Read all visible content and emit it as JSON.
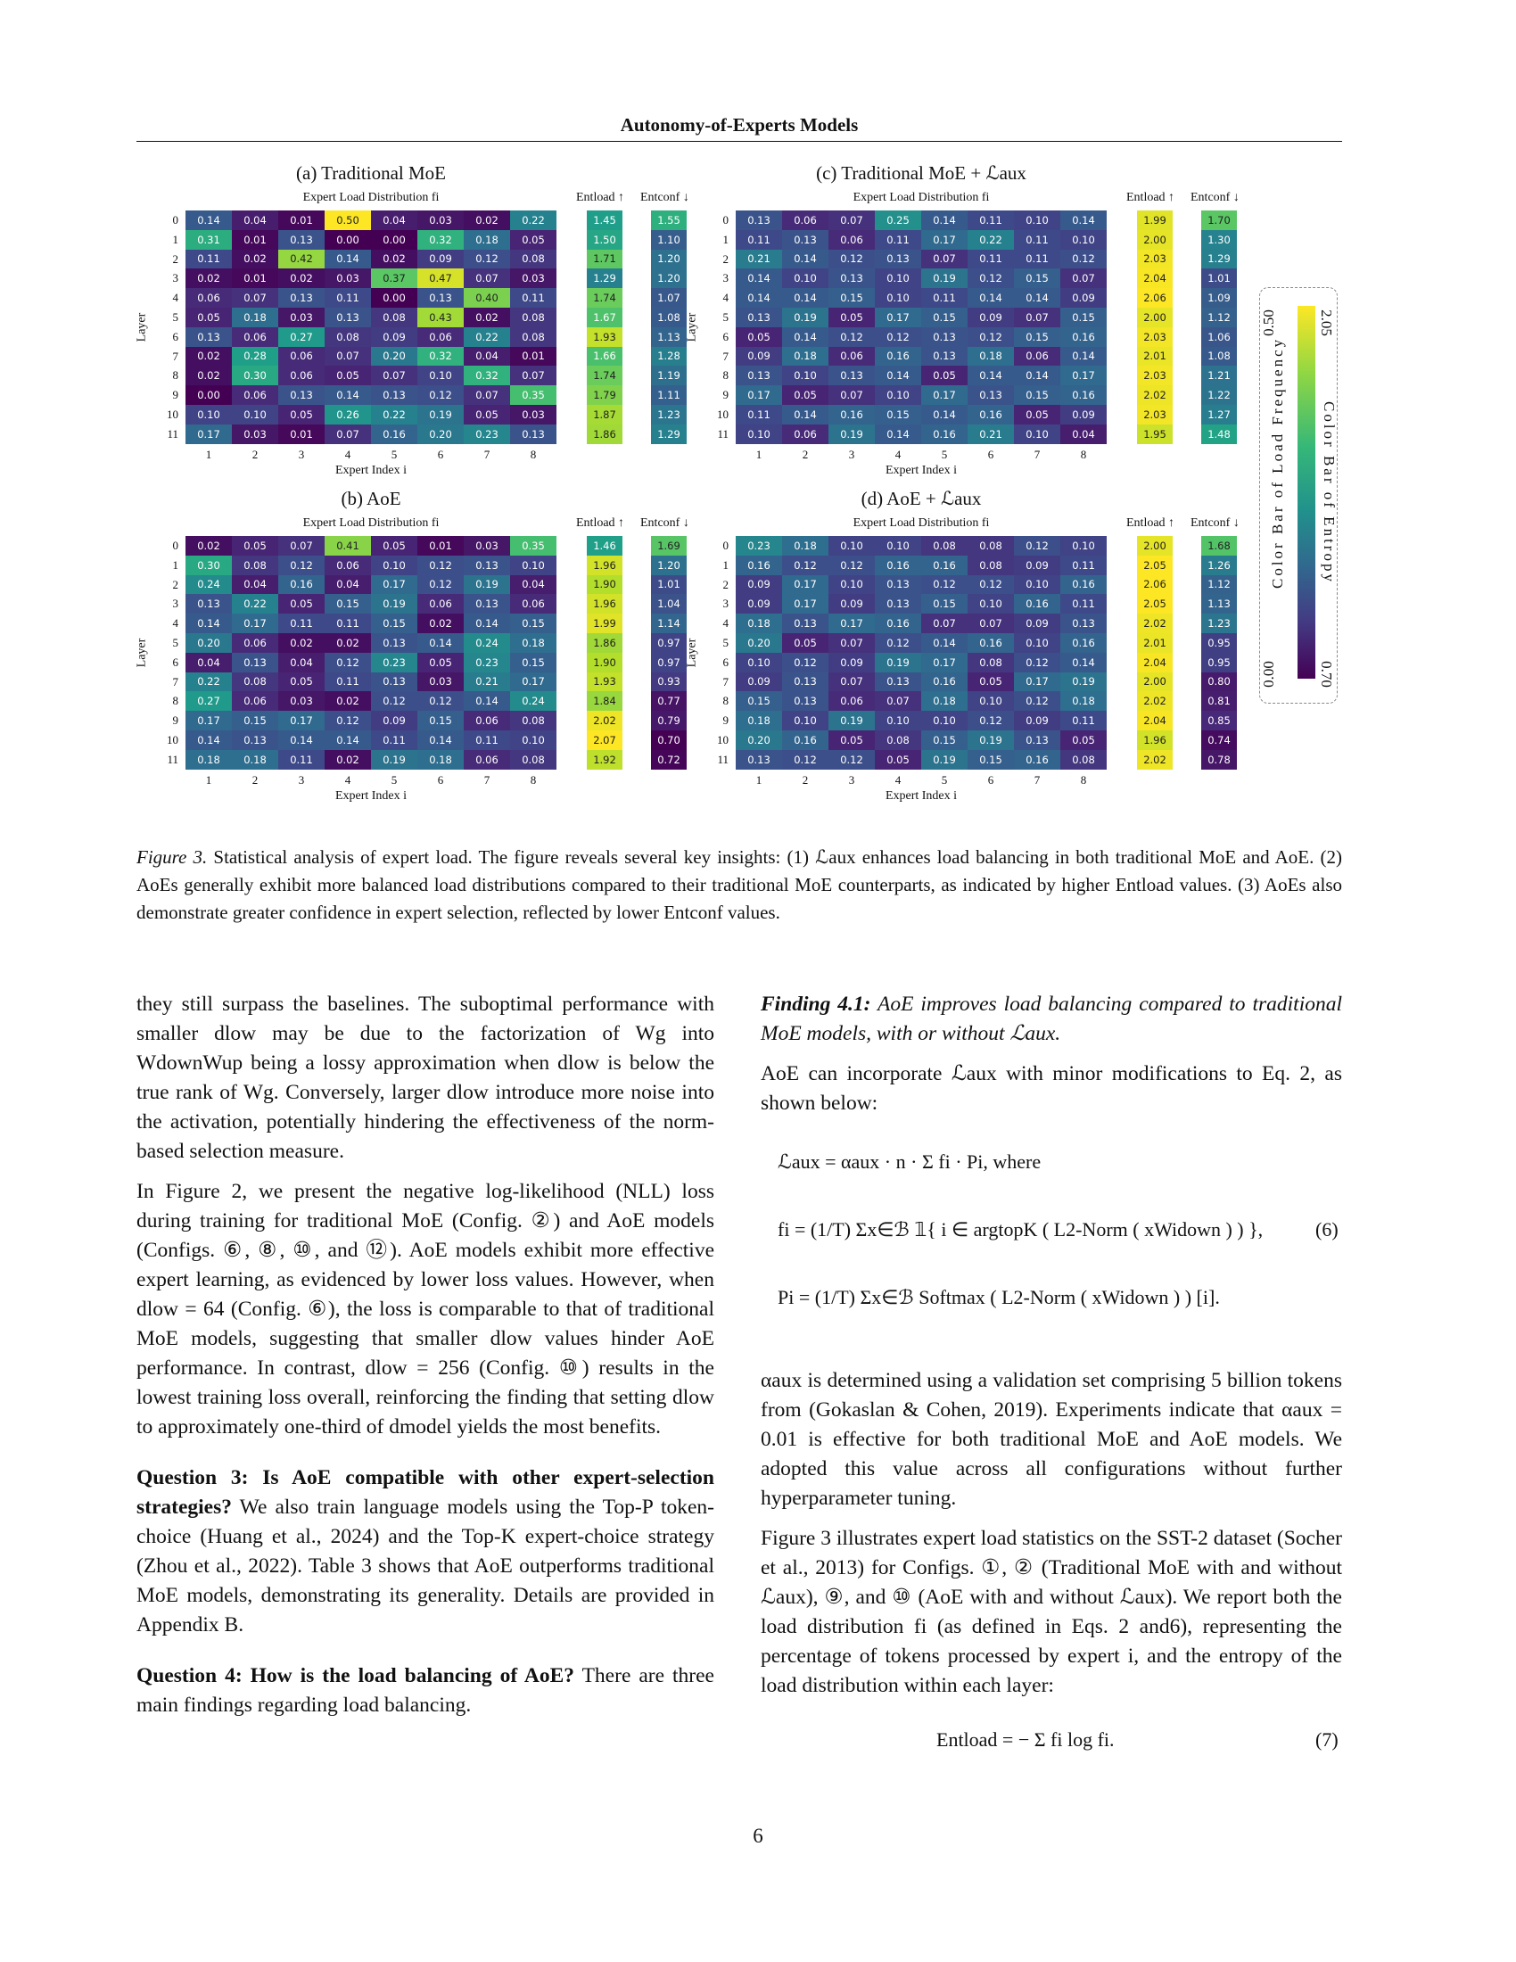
{
  "header": {
    "running_title": "Autonomy-of-Experts Models"
  },
  "chart_data": [
    {
      "type": "heatmap",
      "title": "(a) Traditional MoE",
      "subtitle": "Expert Load Distribution fi",
      "xlabel": "Expert Index i",
      "ylabel": "Layer",
      "x": [
        "1",
        "2",
        "3",
        "4",
        "5",
        "6",
        "7",
        "8"
      ],
      "y": [
        "0",
        "1",
        "2",
        "3",
        "4",
        "5",
        "6",
        "7",
        "8",
        "9",
        "10",
        "11"
      ],
      "values": [
        [
          0.14,
          0.04,
          0.01,
          0.5,
          0.04,
          0.03,
          0.02,
          0.22
        ],
        [
          0.31,
          0.01,
          0.13,
          0.0,
          0.0,
          0.32,
          0.18,
          0.05
        ],
        [
          0.11,
          0.02,
          0.42,
          0.14,
          0.02,
          0.09,
          0.12,
          0.08
        ],
        [
          0.02,
          0.01,
          0.02,
          0.03,
          0.37,
          0.47,
          0.07,
          0.03
        ],
        [
          0.06,
          0.07,
          0.13,
          0.11,
          0.0,
          0.13,
          0.4,
          0.11
        ],
        [
          0.05,
          0.18,
          0.03,
          0.13,
          0.08,
          0.43,
          0.02,
          0.08
        ],
        [
          0.13,
          0.06,
          0.27,
          0.08,
          0.09,
          0.06,
          0.22,
          0.08
        ],
        [
          0.02,
          0.28,
          0.06,
          0.07,
          0.2,
          0.32,
          0.04,
          0.01
        ],
        [
          0.02,
          0.3,
          0.06,
          0.05,
          0.07,
          0.1,
          0.32,
          0.07
        ],
        [
          0.0,
          0.06,
          0.13,
          0.14,
          0.13,
          0.12,
          0.07,
          0.35
        ],
        [
          0.1,
          0.1,
          0.05,
          0.26,
          0.22,
          0.19,
          0.05,
          0.03
        ],
        [
          0.17,
          0.03,
          0.01,
          0.07,
          0.16,
          0.2,
          0.23,
          0.13
        ]
      ],
      "ent_load_label": "Entload ↑",
      "ent_conf_label": "Entconf ↓",
      "ent_load": [
        1.45,
        1.5,
        1.71,
        1.29,
        1.74,
        1.67,
        1.93,
        1.66,
        1.74,
        1.79,
        1.87,
        1.86
      ],
      "ent_conf": [
        1.55,
        1.1,
        1.2,
        1.2,
        1.07,
        1.08,
        1.13,
        1.28,
        1.19,
        1.11,
        1.23,
        1.29
      ]
    },
    {
      "type": "heatmap",
      "title": "(c) Traditional MoE + ℒaux",
      "subtitle": "Expert Load Distribution fi",
      "xlabel": "Expert Index i",
      "ylabel": "Layer",
      "x": [
        "1",
        "2",
        "3",
        "4",
        "5",
        "6",
        "7",
        "8"
      ],
      "y": [
        "0",
        "1",
        "2",
        "3",
        "4",
        "5",
        "6",
        "7",
        "8",
        "9",
        "10",
        "11"
      ],
      "values": [
        [
          0.13,
          0.06,
          0.07,
          0.25,
          0.14,
          0.11,
          0.1,
          0.14
        ],
        [
          0.11,
          0.13,
          0.06,
          0.11,
          0.17,
          0.22,
          0.11,
          0.1
        ],
        [
          0.21,
          0.14,
          0.12,
          0.13,
          0.07,
          0.11,
          0.11,
          0.12
        ],
        [
          0.14,
          0.1,
          0.13,
          0.1,
          0.19,
          0.12,
          0.15,
          0.07
        ],
        [
          0.14,
          0.14,
          0.15,
          0.1,
          0.11,
          0.14,
          0.14,
          0.09
        ],
        [
          0.13,
          0.19,
          0.05,
          0.17,
          0.15,
          0.09,
          0.07,
          0.15
        ],
        [
          0.05,
          0.14,
          0.12,
          0.12,
          0.13,
          0.12,
          0.15,
          0.16
        ],
        [
          0.09,
          0.18,
          0.06,
          0.16,
          0.13,
          0.18,
          0.06,
          0.14
        ],
        [
          0.13,
          0.1,
          0.13,
          0.14,
          0.05,
          0.14,
          0.14,
          0.17
        ],
        [
          0.17,
          0.05,
          0.07,
          0.1,
          0.17,
          0.13,
          0.15,
          0.16
        ],
        [
          0.11,
          0.14,
          0.16,
          0.15,
          0.14,
          0.16,
          0.05,
          0.09
        ],
        [
          0.1,
          0.06,
          0.19,
          0.14,
          0.16,
          0.21,
          0.1,
          0.04
        ]
      ],
      "ent_load_label": "Entload ↑",
      "ent_conf_label": "Entconf ↓",
      "ent_load": [
        1.99,
        2.0,
        2.03,
        2.04,
        2.06,
        2.0,
        2.03,
        2.01,
        2.03,
        2.02,
        2.03,
        1.95
      ],
      "ent_conf": [
        1.7,
        1.3,
        1.29,
        1.01,
        1.09,
        1.12,
        1.06,
        1.08,
        1.21,
        1.22,
        1.27,
        1.48
      ]
    },
    {
      "type": "heatmap",
      "title": "(b) AoE",
      "subtitle": "Expert Load Distribution fi",
      "xlabel": "Expert Index i",
      "ylabel": "Layer",
      "x": [
        "1",
        "2",
        "3",
        "4",
        "5",
        "6",
        "7",
        "8"
      ],
      "y": [
        "0",
        "1",
        "2",
        "3",
        "4",
        "5",
        "6",
        "7",
        "8",
        "9",
        "10",
        "11"
      ],
      "values": [
        [
          0.02,
          0.05,
          0.07,
          0.41,
          0.05,
          0.01,
          0.03,
          0.35
        ],
        [
          0.3,
          0.08,
          0.12,
          0.06,
          0.1,
          0.12,
          0.13,
          0.1
        ],
        [
          0.24,
          0.04,
          0.16,
          0.04,
          0.17,
          0.12,
          0.19,
          0.04
        ],
        [
          0.13,
          0.22,
          0.05,
          0.15,
          0.19,
          0.06,
          0.13,
          0.06
        ],
        [
          0.14,
          0.17,
          0.11,
          0.11,
          0.15,
          0.02,
          0.14,
          0.15
        ],
        [
          0.2,
          0.06,
          0.02,
          0.02,
          0.13,
          0.14,
          0.24,
          0.18
        ],
        [
          0.04,
          0.13,
          0.04,
          0.12,
          0.23,
          0.05,
          0.23,
          0.15
        ],
        [
          0.22,
          0.08,
          0.05,
          0.11,
          0.13,
          0.03,
          0.21,
          0.17
        ],
        [
          0.27,
          0.06,
          0.03,
          0.02,
          0.12,
          0.12,
          0.14,
          0.24
        ],
        [
          0.17,
          0.15,
          0.17,
          0.12,
          0.09,
          0.15,
          0.06,
          0.08
        ],
        [
          0.14,
          0.13,
          0.14,
          0.14,
          0.11,
          0.14,
          0.11,
          0.1
        ],
        [
          0.18,
          0.18,
          0.11,
          0.02,
          0.19,
          0.18,
          0.06,
          0.08
        ]
      ],
      "ent_load_label": "Entload ↑",
      "ent_conf_label": "Entconf ↓",
      "ent_load": [
        1.46,
        1.96,
        1.9,
        1.96,
        1.99,
        1.86,
        1.9,
        1.93,
        1.84,
        2.02,
        2.07,
        1.92
      ],
      "ent_conf": [
        1.69,
        1.2,
        1.01,
        1.04,
        1.14,
        0.97,
        0.97,
        0.93,
        0.77,
        0.79,
        0.7,
        0.72
      ]
    },
    {
      "type": "heatmap",
      "title": "(d) AoE + ℒaux",
      "subtitle": "Expert Load Distribution fi",
      "xlabel": "Expert Index i",
      "ylabel": "Layer",
      "x": [
        "1",
        "2",
        "3",
        "4",
        "5",
        "6",
        "7",
        "8"
      ],
      "y": [
        "0",
        "1",
        "2",
        "3",
        "4",
        "5",
        "6",
        "7",
        "8",
        "9",
        "10",
        "11"
      ],
      "values": [
        [
          0.23,
          0.18,
          0.1,
          0.1,
          0.08,
          0.08,
          0.12,
          0.1
        ],
        [
          0.16,
          0.12,
          0.12,
          0.16,
          0.16,
          0.08,
          0.09,
          0.11
        ],
        [
          0.09,
          0.17,
          0.1,
          0.13,
          0.12,
          0.12,
          0.1,
          0.16
        ],
        [
          0.09,
          0.17,
          0.09,
          0.13,
          0.15,
          0.1,
          0.16,
          0.11
        ],
        [
          0.18,
          0.13,
          0.17,
          0.16,
          0.07,
          0.07,
          0.09,
          0.13
        ],
        [
          0.2,
          0.05,
          0.07,
          0.12,
          0.14,
          0.16,
          0.1,
          0.16
        ],
        [
          0.1,
          0.12,
          0.09,
          0.19,
          0.17,
          0.08,
          0.12,
          0.14
        ],
        [
          0.09,
          0.13,
          0.07,
          0.13,
          0.16,
          0.05,
          0.17,
          0.19
        ],
        [
          0.15,
          0.13,
          0.06,
          0.07,
          0.18,
          0.1,
          0.12,
          0.18
        ],
        [
          0.18,
          0.1,
          0.19,
          0.1,
          0.1,
          0.12,
          0.09,
          0.11
        ],
        [
          0.2,
          0.16,
          0.05,
          0.08,
          0.15,
          0.19,
          0.13,
          0.05
        ],
        [
          0.13,
          0.12,
          0.12,
          0.05,
          0.19,
          0.15,
          0.16,
          0.08
        ]
      ],
      "ent_load_label": "Entload ↑",
      "ent_conf_label": "Entconf ↓",
      "ent_load": [
        2.0,
        2.05,
        2.06,
        2.05,
        2.02,
        2.01,
        2.04,
        2.0,
        2.02,
        2.04,
        1.96,
        2.02
      ],
      "ent_conf": [
        1.68,
        1.26,
        1.12,
        1.13,
        1.23,
        0.95,
        0.95,
        0.8,
        0.81,
        0.85,
        0.74,
        0.78
      ]
    }
  ],
  "legend": {
    "left_label": "Color Bar of Load Frequency",
    "right_label": "Color Bar of Entropy",
    "freq_max": "0.50",
    "freq_min": "0.00",
    "ent_max": "2.05",
    "ent_min": "0.70"
  },
  "caption": {
    "fig_label": "Figure 3.",
    "text": "Statistical analysis of expert load. The figure reveals several key insights: (1) ℒaux enhances load balancing in both traditional MoE and AoE. (2) AoEs generally exhibit more balanced load distributions compared to their traditional MoE counterparts, as indicated by higher Entload values. (3) AoEs also demonstrate greater confidence in expert selection, reflected by lower Entconf values."
  },
  "left_column": {
    "p1": "they still surpass the baselines. The suboptimal performance with smaller dlow may be due to the factorization of Wg into WdownWup being a lossy approximation when dlow is below the true rank of Wg. Conversely, larger dlow introduce more noise into the activation, potentially hindering the effectiveness of the norm-based selection measure.",
    "p2": "In Figure 2, we present the negative log-likelihood (NLL) loss during training for traditional MoE (Config. ②) and AoE models (Configs. ⑥, ⑧, ⑩, and ⑫). AoE models exhibit more effective expert learning, as evidenced by lower loss values. However, when dlow = 64 (Config. ⑥), the loss is comparable to that of traditional MoE models, suggesting that smaller dlow values hinder AoE performance. In contrast, dlow = 256 (Config. ⑩) results in the lowest training loss overall, reinforcing the finding that setting dlow to approximately one-third of dmodel yields the most benefits.",
    "q3_head": "Question 3: Is AoE compatible with other expert-selection strategies?",
    "q3_body": "We also train language models using the Top-P token-choice (Huang et al., 2024) and the Top-K expert-choice strategy (Zhou et al., 2022). Table 3 shows that AoE outperforms traditional MoE models, demonstrating its generality. Details are provided in Appendix B.",
    "q4_head": "Question 4: How is the load balancing of AoE?",
    "q4_body": "There are three main findings regarding load balancing."
  },
  "right_column": {
    "finding_head": "Finding 4.1:",
    "finding_body": "AoE improves load balancing compared to traditional MoE models, with or without ℒaux.",
    "p1": "AoE can incorporate ℒaux with minor modifications to Eq. 2, as shown below:",
    "eq1": "ℒaux = αaux · n · Σ fi · Pi, where",
    "eq2": "fi = (1/T) Σx∈ℬ 𝟙{ i ∈ argtopK ( L2-Norm ( xWidown ) ) },",
    "eq2_num": "(6)",
    "eq3": "Pi = (1/T) Σx∈ℬ Softmax ( L2-Norm ( xWidown ) ) [i].",
    "p2": "αaux is determined using a validation set comprising 5 billion tokens from (Gokaslan & Cohen, 2019). Experiments indicate that αaux = 0.01 is effective for both traditional MoE and AoE models. We adopted this value across all configurations without further hyperparameter tuning.",
    "p3": "Figure 3 illustrates expert load statistics on the SST-2 dataset (Socher et al., 2013) for Configs. ①, ② (Traditional MoE with and without ℒaux), ⑨, and ⑩ (AoE with and without ℒaux). We report both the load distribution fi (as defined in Eqs. 2 and6), representing the percentage of tokens processed by expert i, and the entropy of the load distribution within each layer:",
    "eq4": "Entload = − Σ fi log fi.",
    "eq4_num": "(7)"
  },
  "page_number": "6"
}
